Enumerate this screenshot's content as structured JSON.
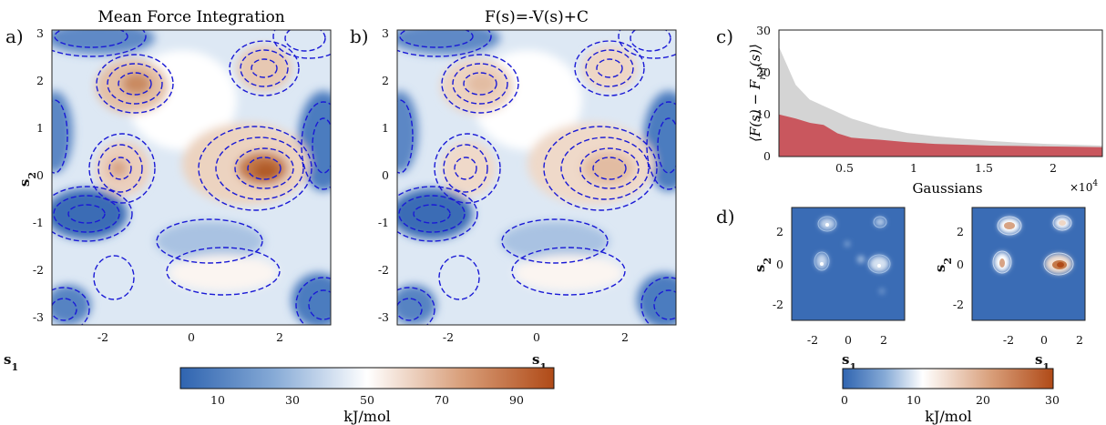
{
  "panel_labels": {
    "a": "a)",
    "b": "b)",
    "c": "c)",
    "d": "d)"
  },
  "colors": {
    "cold": "#2f64b0",
    "mid": "#ffffff",
    "hot": "#b04a17",
    "contour": "#1a1ad6",
    "gray_area": "#d4d4d4",
    "red_area": "#c9575e"
  },
  "chart_data": [
    {
      "type": "heatmap",
      "panel": "a",
      "title": "Mean Force Integration",
      "xlabel": "s1",
      "ylabel": "s2",
      "xlim": [
        -3.14,
        3.14
      ],
      "ylim": [
        -3.14,
        3.14
      ],
      "xticks": [
        "-2",
        "0",
        "2"
      ],
      "yticks": [
        "3",
        "2",
        "1",
        "0",
        "-1",
        "-2",
        "-3"
      ],
      "contour_lines": "dashed",
      "colorbar": {
        "ticks": [
          "10",
          "30",
          "50",
          "70",
          "90"
        ],
        "range": [
          0,
          100
        ],
        "label": "kJ/mol"
      }
    },
    {
      "type": "heatmap",
      "panel": "b",
      "title": "F(s)=-V(s)+C",
      "xlabel": "s1",
      "ylabel": "s2",
      "xlim": [
        -3.14,
        3.14
      ],
      "ylim": [
        -3.14,
        3.14
      ],
      "xticks": [
        "-2",
        "0",
        "2"
      ],
      "yticks": [
        "3",
        "2",
        "1",
        "0",
        "-1",
        "-2",
        "-3"
      ],
      "contour_lines": "dashed"
    },
    {
      "type": "area",
      "panel": "c",
      "ylabel": "⟨F(s) − F_ref(s)⟩",
      "ylabel_parts": {
        "a": "⟨F(s) − F",
        "sub": "ref",
        "b": "(s)⟩"
      },
      "xlabel": "Gaussians",
      "x_multiplier": "×10",
      "x_multiplier_exp": "4",
      "xlim": [
        0.08,
        2.4
      ],
      "ylim": [
        0,
        30
      ],
      "xticks": [
        "0.5",
        "1",
        "1.5",
        "2"
      ],
      "yticks": [
        "30",
        "20",
        "10",
        "0"
      ],
      "x": [
        0.08,
        0.2,
        0.3,
        0.4,
        0.5,
        0.6,
        0.7,
        0.8,
        0.9,
        1.0,
        1.2,
        1.4,
        1.6,
        1.8,
        2.0,
        2.2,
        2.4
      ],
      "series": [
        {
          "values": [
            26,
            17,
            13.5,
            12,
            10.5,
            9,
            8,
            7,
            6.3,
            5.6,
            4.8,
            4.2,
            3.7,
            3.3,
            3.0,
            2.8,
            2.6
          ]
        },
        {
          "values": [
            10,
            9,
            8,
            7.5,
            5.5,
            4.5,
            4.2,
            4.0,
            3.7,
            3.4,
            3.0,
            2.8,
            2.6,
            2.5,
            2.4,
            2.3,
            2.2
          ]
        }
      ]
    },
    {
      "type": "heatmap",
      "panel": "d",
      "xlabel": "s1",
      "ylabel": "s2",
      "xlim": [
        -3.14,
        3.14
      ],
      "ylim": [
        -3.14,
        3.14
      ],
      "xticks": [
        "-2",
        "0",
        "2"
      ],
      "yticks": [
        "2",
        "0",
        "-2"
      ],
      "colorbar": {
        "ticks": [
          "0",
          "10",
          "20",
          "30"
        ],
        "range": [
          0,
          30
        ],
        "label": "kJ/mol"
      }
    }
  ]
}
